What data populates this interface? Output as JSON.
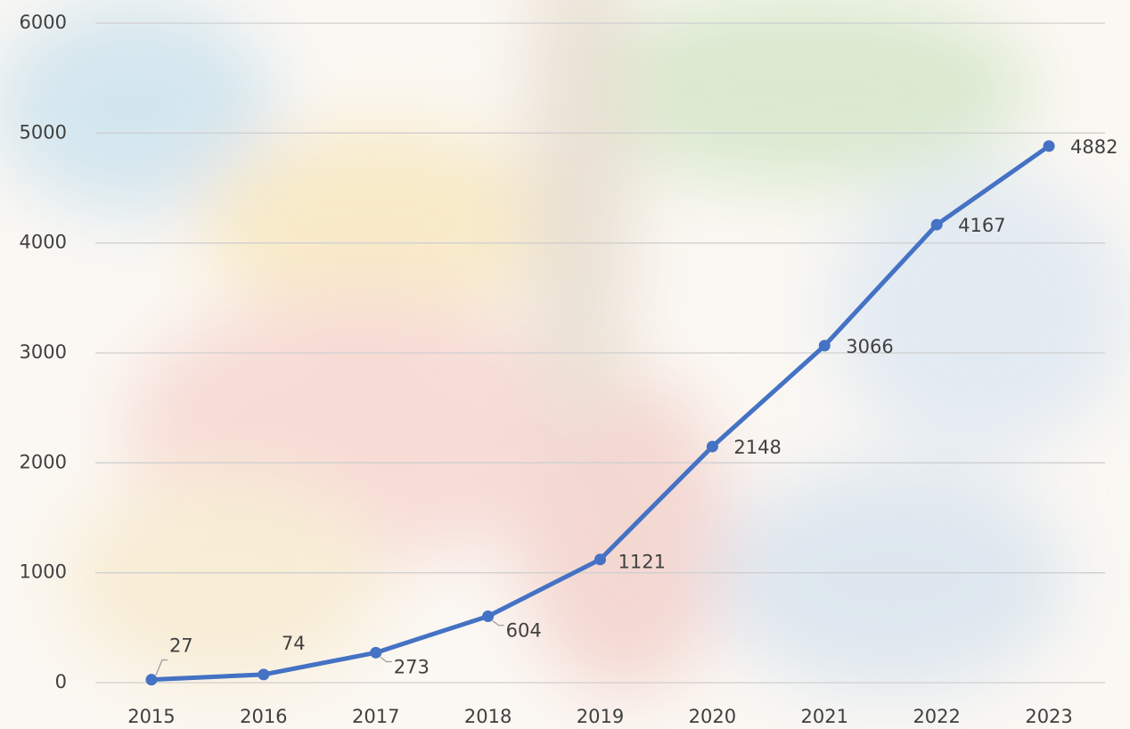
{
  "chart_data": {
    "type": "line",
    "categories": [
      "2015",
      "2016",
      "2017",
      "2018",
      "2019",
      "2020",
      "2021",
      "2022",
      "2023"
    ],
    "series": [
      {
        "color": "#4472c4",
        "values": [
          27,
          74,
          273,
          604,
          1121,
          2148,
          3066,
          4167,
          4882
        ]
      }
    ],
    "ylim": [
      0,
      6000
    ],
    "yticks": [
      0,
      1000,
      2000,
      3000,
      4000,
      5000,
      6000
    ],
    "grid": true,
    "data_labels": true
  }
}
